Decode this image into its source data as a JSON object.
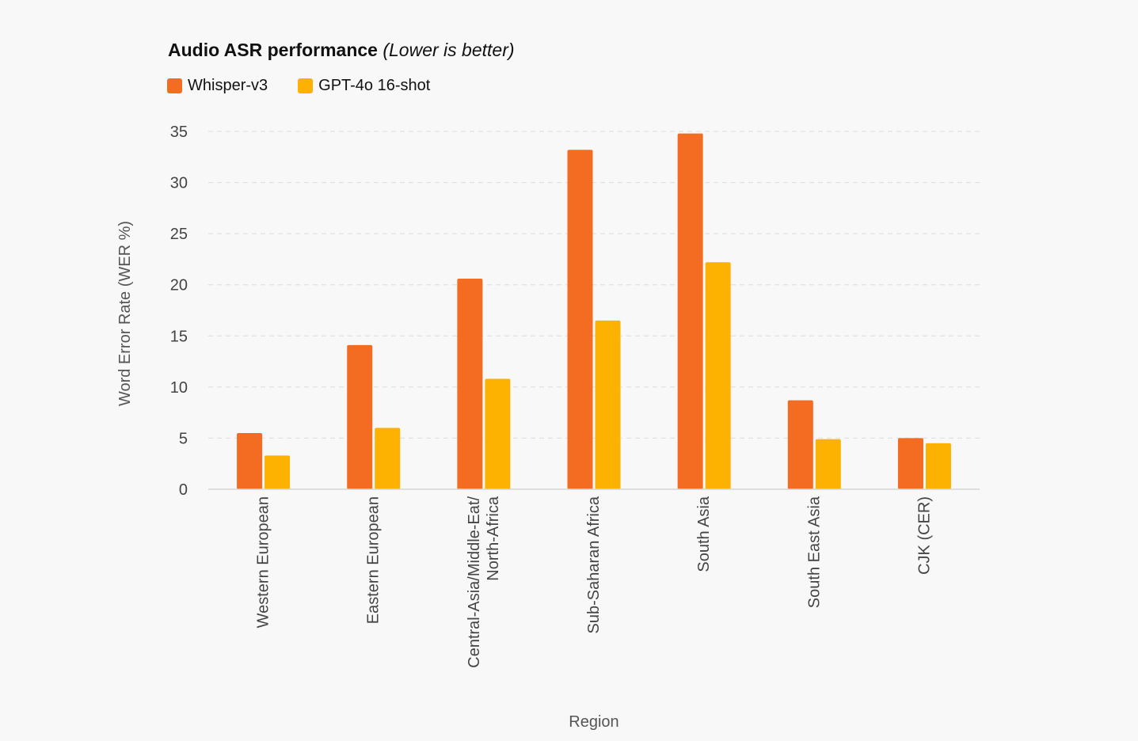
{
  "chart_data": {
    "type": "bar",
    "title": "Audio ASR performance",
    "subtitle": "(Lower is better)",
    "xlabel": "Region",
    "ylabel": "Word Error Rate (WER %)",
    "ylim": [
      0,
      35
    ],
    "yticks": [
      0,
      5,
      10,
      15,
      20,
      25,
      30,
      35
    ],
    "grid": true,
    "legend_position": "top-left",
    "categories": [
      [
        "Western European"
      ],
      [
        "Eastern European"
      ],
      [
        "Central-Asia/Middle-Eat/",
        "North-Africa"
      ],
      [
        "Sub-Saharan Africa"
      ],
      [
        "South Asia"
      ],
      [
        "South East Asia"
      ],
      [
        "CJK (CER)"
      ]
    ],
    "series": [
      {
        "name": "Whisper-v3",
        "color": "#f46b22",
        "values": [
          5.5,
          14.1,
          20.6,
          33.2,
          34.8,
          8.7,
          5.0
        ]
      },
      {
        "name": "GPT-4o 16-shot",
        "color": "#fdb100",
        "values": [
          3.3,
          6.0,
          10.8,
          16.5,
          22.2,
          4.9,
          4.5
        ]
      }
    ]
  }
}
